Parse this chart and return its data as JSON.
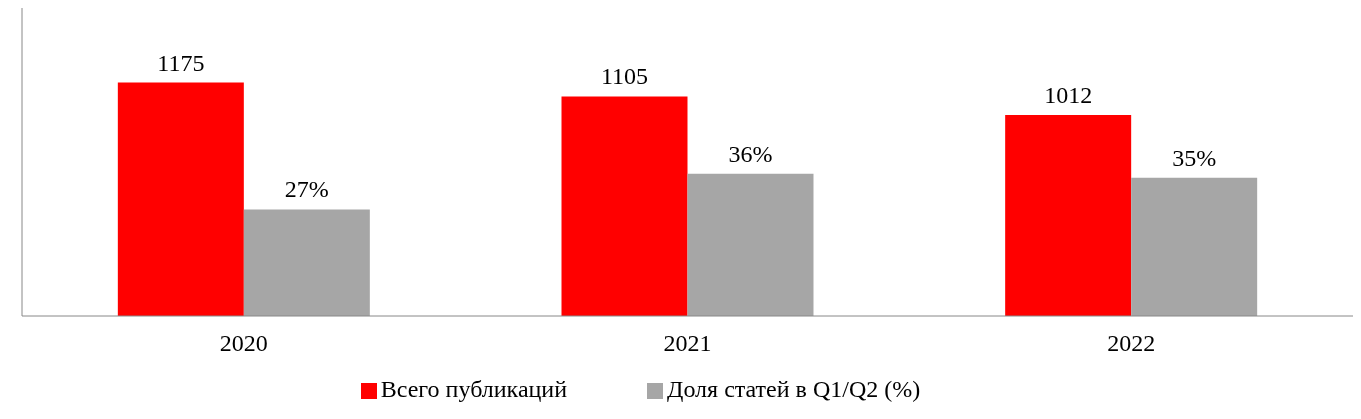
{
  "chart_data": {
    "type": "bar",
    "categories": [
      "2020",
      "2021",
      "2022"
    ],
    "series": [
      {
        "name": "Всего публикаций",
        "color": "#ff0000",
        "values": [
          1175,
          1105,
          1012
        ],
        "value_labels": [
          "1175",
          "1105",
          "1012"
        ]
      },
      {
        "name": "Доля статей в Q1/Q2 (%)",
        "color": "#a6a6a6",
        "values": [
          27,
          36,
          35
        ],
        "value_labels": [
          "27%",
          "36%",
          "35%"
        ],
        "axis": "y2"
      }
    ],
    "ylim": [
      0,
      1550
    ],
    "y2lim": [
      0,
      78
    ],
    "tick_labels": "x",
    "legend": "bottom"
  }
}
